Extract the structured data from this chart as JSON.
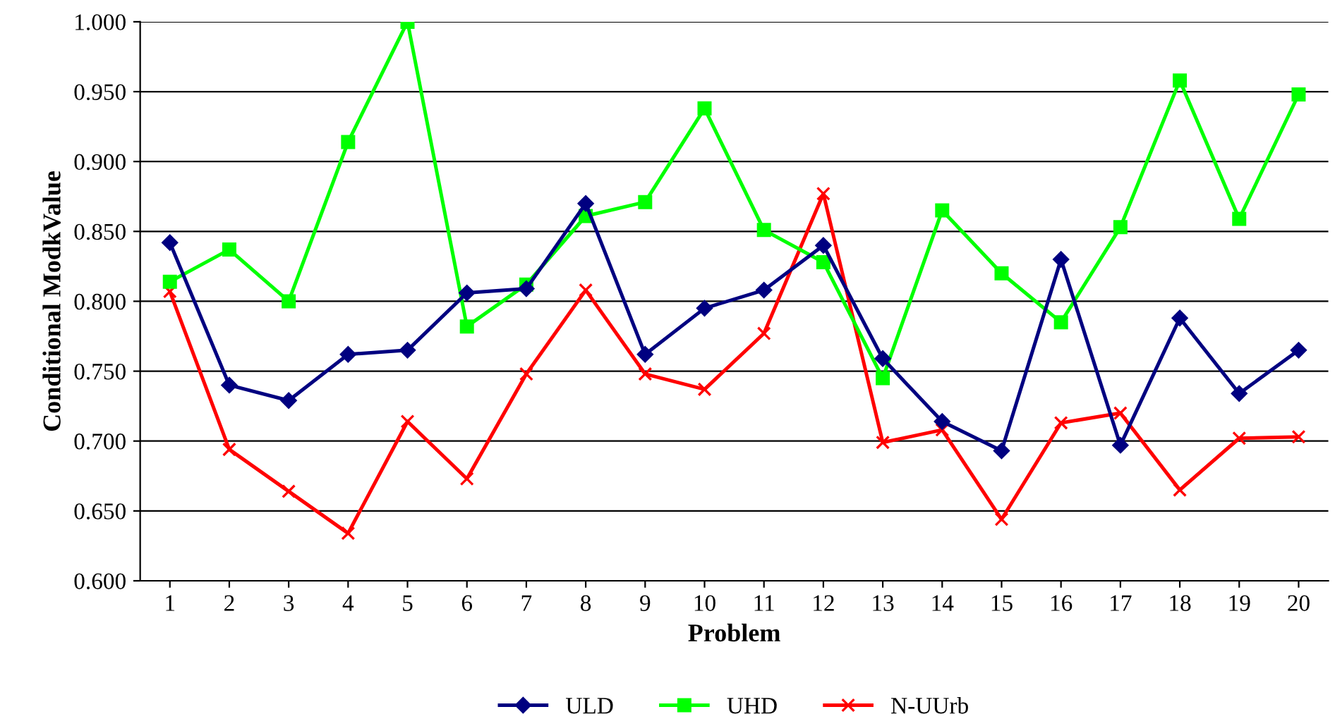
{
  "chart_data": {
    "type": "line",
    "xlabel": "Problem",
    "ylabel": "Conditional ModkValue",
    "categories": [
      "1",
      "2",
      "3",
      "4",
      "5",
      "6",
      "7",
      "8",
      "9",
      "10",
      "11",
      "12",
      "13",
      "14",
      "15",
      "16",
      "17",
      "18",
      "19",
      "20"
    ],
    "series": [
      {
        "name": "ULD",
        "color": "#000080",
        "marker": "diamond",
        "values": [
          0.842,
          0.74,
          0.729,
          0.762,
          0.765,
          0.806,
          0.809,
          0.87,
          0.762,
          0.795,
          0.808,
          0.84,
          0.759,
          0.714,
          0.693,
          0.83,
          0.697,
          0.788,
          0.734,
          0.765
        ]
      },
      {
        "name": "UHD",
        "color": "#00ff00",
        "marker": "square",
        "values": [
          0.814,
          0.837,
          0.8,
          0.914,
          1.0,
          0.782,
          0.812,
          0.861,
          0.871,
          0.938,
          0.851,
          0.828,
          0.745,
          0.865,
          0.82,
          0.785,
          0.853,
          0.958,
          0.859,
          0.948
        ]
      },
      {
        "name": "N-UUrb",
        "color": "#ff0000",
        "marker": "cross",
        "values": [
          0.807,
          0.694,
          0.664,
          0.634,
          0.714,
          0.673,
          0.748,
          0.808,
          0.748,
          0.737,
          0.777,
          0.877,
          0.699,
          0.708,
          0.644,
          0.713,
          0.72,
          0.665,
          0.702,
          0.703
        ]
      }
    ],
    "ylim": [
      0.6,
      1.0
    ],
    "yticks": [
      {
        "value": 0.6,
        "label": "0.600"
      },
      {
        "value": 0.65,
        "label": "0.650"
      },
      {
        "value": 0.7,
        "label": "0.700"
      },
      {
        "value": 0.75,
        "label": "0.750"
      },
      {
        "value": 0.8,
        "label": "0.800"
      },
      {
        "value": 0.85,
        "label": "0.850"
      },
      {
        "value": 0.9,
        "label": "0.900"
      },
      {
        "value": 0.95,
        "label": "0.950"
      },
      {
        "value": 1.0,
        "label": "1.000"
      }
    ],
    "grid": "y",
    "legend": "bottom",
    "line_style": "solid"
  }
}
